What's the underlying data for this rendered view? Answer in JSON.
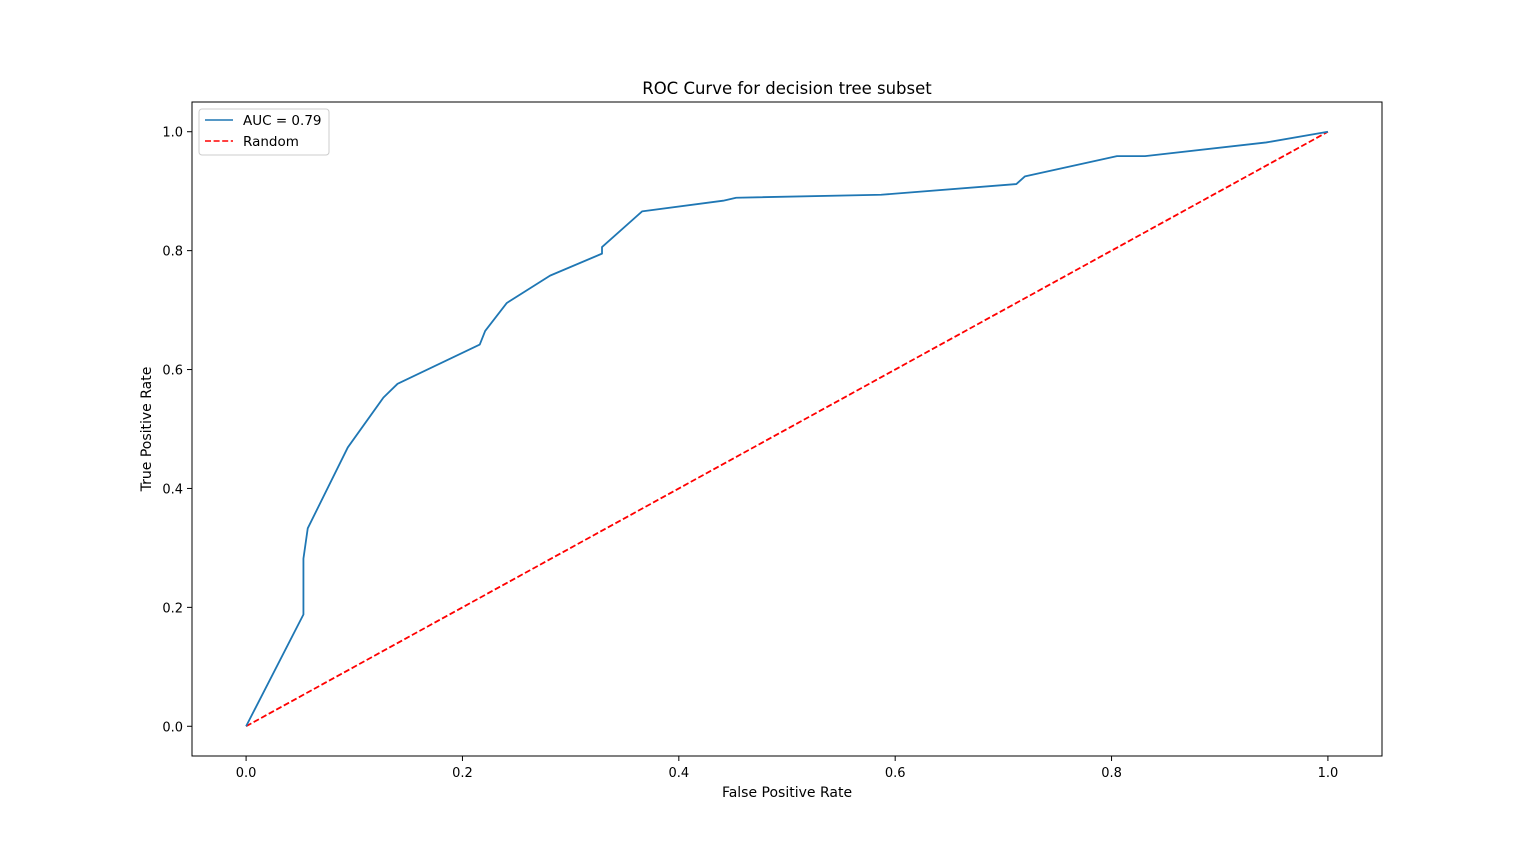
{
  "chart_data": {
    "type": "line",
    "title": "ROC Curve for decision tree subset",
    "xlabel": "False Positive Rate",
    "ylabel": "True Positive Rate",
    "xlim": [
      -0.05,
      1.05
    ],
    "ylim": [
      -0.05,
      1.05
    ],
    "x_ticks": [
      0.0,
      0.2,
      0.4,
      0.6,
      0.8,
      1.0
    ],
    "x_tick_labels": [
      "0.0",
      "0.2",
      "0.4",
      "0.6",
      "0.8",
      "1.0"
    ],
    "y_ticks": [
      0.0,
      0.2,
      0.4,
      0.6,
      0.8,
      1.0
    ],
    "y_tick_labels": [
      "0.0",
      "0.2",
      "0.4",
      "0.6",
      "0.8",
      "1.0"
    ],
    "grid": false,
    "legend_position": "upper-left",
    "series": [
      {
        "name": "AUC = 0.79",
        "color": "#1f77b4",
        "style": "solid",
        "x": [
          0.0,
          0.053,
          0.053,
          0.057,
          0.094,
          0.127,
          0.14,
          0.216,
          0.221,
          0.241,
          0.281,
          0.329,
          0.329,
          0.366,
          0.441,
          0.453,
          0.587,
          0.712,
          0.72,
          0.805,
          0.831,
          0.943,
          1.0
        ],
        "y": [
          0.0,
          0.188,
          0.282,
          0.333,
          0.469,
          0.553,
          0.576,
          0.642,
          0.665,
          0.712,
          0.758,
          0.795,
          0.806,
          0.866,
          0.884,
          0.889,
          0.894,
          0.912,
          0.925,
          0.959,
          0.959,
          0.982,
          1.0
        ]
      },
      {
        "name": "Random",
        "color": "#ff0000",
        "style": "dashed",
        "x": [
          0.0,
          1.0
        ],
        "y": [
          0.0,
          1.0
        ]
      }
    ]
  }
}
